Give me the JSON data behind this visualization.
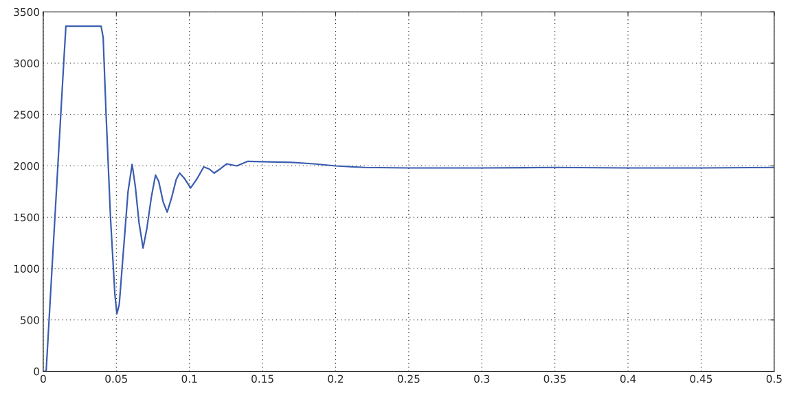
{
  "chart_data": {
    "type": "line",
    "grid": true,
    "line_style": "solid",
    "marker": "none",
    "xlim": [
      0,
      0.5
    ],
    "ylim": [
      0,
      3500
    ],
    "xticks": [
      0,
      0.05,
      0.1,
      0.15,
      0.2,
      0.25,
      0.3,
      0.35,
      0.4,
      0.45,
      0.5
    ],
    "yticks": [
      0,
      500,
      1000,
      1500,
      2000,
      2500,
      3000,
      3500
    ],
    "series": [
      {
        "color": "#3b5db0",
        "x": [
          0,
          0.002,
          0.006,
          0.01,
          0.014,
          0.0155,
          0.03,
          0.0396,
          0.041,
          0.043,
          0.046,
          0.049,
          0.0504,
          0.052,
          0.055,
          0.058,
          0.0608,
          0.063,
          0.0655,
          0.0683,
          0.071,
          0.074,
          0.0768,
          0.079,
          0.082,
          0.0848,
          0.088,
          0.091,
          0.0933,
          0.0965,
          0.1008,
          0.105,
          0.1098,
          0.1135,
          0.1169,
          0.121,
          0.1254,
          0.1324,
          0.14,
          0.155,
          0.17,
          0.185,
          0.2,
          0.22,
          0.25,
          0.3,
          0.35,
          0.4,
          0.45,
          0.5
        ],
        "values": [
          0,
          0,
          1000,
          2000,
          3000,
          3360,
          3360,
          3360,
          3250,
          2500,
          1500,
          750,
          560,
          650,
          1200,
          1750,
          2015,
          1800,
          1450,
          1200,
          1400,
          1700,
          1910,
          1850,
          1650,
          1550,
          1700,
          1870,
          1930,
          1880,
          1785,
          1870,
          1990,
          1970,
          1930,
          1970,
          2020,
          2000,
          2045,
          2040,
          2035,
          2020,
          2000,
          1985,
          1980,
          1980,
          1985,
          1980,
          1980,
          1985
        ]
      }
    ]
  }
}
